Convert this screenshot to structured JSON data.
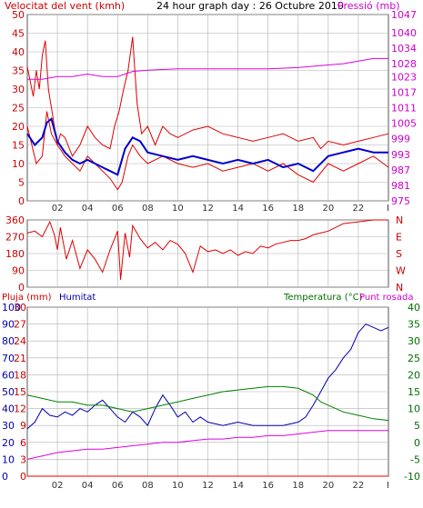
{
  "colors": {
    "wind": "#e00000",
    "gust": "#e00000",
    "pressure": "#e000e0",
    "avg_wind": "#0000cc",
    "green": "#008000",
    "blue": "#0000b0",
    "magenta": "#e000e0",
    "red": "#e00000",
    "grid": "#b0b0b0",
    "axis_left_top": "#cc0000",
    "axis_right_top": "#cc00cc",
    "axis_blue": "#0000aa",
    "axis_green": "#007000",
    "dark": "#333333"
  },
  "chart_data": [
    {
      "type": "line",
      "title": "24 hour graph day : 26 Octubre 2010",
      "ylabel": "Velocitat del vent (kmh)",
      "y2label": "Pressió (mb)",
      "ylim": [
        0,
        50
      ],
      "yticks": [
        0,
        5,
        10,
        15,
        20,
        25,
        30,
        35,
        40,
        45,
        50
      ],
      "y2lim": [
        975,
        1047
      ],
      "y2ticks": [
        975,
        981,
        987,
        993,
        999,
        1005,
        1011,
        1017,
        1023,
        1028,
        1034,
        1040,
        1047
      ],
      "xlim": [
        0,
        24
      ],
      "xticks": [
        2,
        4,
        6,
        8,
        10,
        12,
        14,
        16,
        18,
        20,
        22
      ],
      "xticklabels": [
        "02",
        "04",
        "06",
        "08",
        "10",
        "12",
        "14",
        "16",
        "18",
        "20",
        "22"
      ],
      "xlast_label": "I",
      "grid": true,
      "series": [
        {
          "key": "gust",
          "axis": "left",
          "width": 1,
          "x": [
            0,
            0.2,
            0.4,
            0.6,
            0.8,
            1.0,
            1.2,
            1.4,
            1.6,
            1.8,
            2.0,
            2.2,
            2.5,
            3.0,
            3.5,
            4.0,
            4.5,
            5.0,
            5.5,
            5.8,
            6.1,
            6.4,
            6.7,
            7.0,
            7.1,
            7.3,
            7.6,
            8.0,
            8.5,
            9.0,
            9.5,
            10.0,
            11.0,
            12.0,
            13.0,
            14.0,
            15.0,
            16.0,
            17.0,
            18.0,
            19.0,
            19.5,
            20.0,
            21.0,
            22.0,
            23.0,
            24.0
          ],
          "values": [
            36,
            32,
            28,
            35,
            30,
            39,
            43,
            30,
            25,
            20,
            15,
            18,
            17,
            12,
            15,
            20,
            17,
            15,
            14,
            20,
            24,
            30,
            35,
            44,
            38,
            26,
            18,
            20,
            15,
            20,
            18,
            17,
            19,
            20,
            18,
            17,
            16,
            17,
            18,
            16,
            17,
            14,
            16,
            15,
            16,
            17,
            18
          ]
        },
        {
          "key": "wind",
          "axis": "left",
          "width": 1,
          "x": [
            0,
            0.3,
            0.6,
            1.0,
            1.3,
            1.6,
            2.0,
            2.5,
            3.0,
            3.5,
            4.0,
            4.5,
            5.0,
            5.5,
            6.0,
            6.3,
            6.7,
            7.0,
            7.5,
            8.0,
            9.0,
            10.0,
            11.0,
            12.0,
            13.0,
            14.0,
            15.0,
            16.0,
            17.0,
            18.0,
            19.0,
            20.0,
            21.0,
            22.0,
            23.0,
            24.0
          ],
          "values": [
            20,
            15,
            10,
            12,
            24,
            18,
            15,
            12,
            10,
            8,
            12,
            10,
            8,
            6,
            3,
            5,
            12,
            15,
            12,
            10,
            12,
            10,
            9,
            10,
            8,
            9,
            10,
            8,
            10,
            7,
            5,
            10,
            8,
            10,
            12,
            9
          ]
        },
        {
          "key": "avg_wind",
          "axis": "left",
          "width": 2,
          "x": [
            0,
            0.5,
            1.0,
            1.3,
            1.6,
            2.0,
            2.5,
            3.0,
            3.5,
            4.0,
            4.5,
            5.0,
            5.5,
            6.0,
            6.5,
            7.0,
            7.5,
            8.0,
            9.0,
            10.0,
            11.0,
            12.0,
            13.0,
            14.0,
            15.0,
            16.0,
            17.0,
            18.0,
            19.0,
            20.0,
            21.0,
            22.0,
            23.0,
            24.0
          ],
          "values": [
            18,
            15,
            17,
            21,
            22,
            16,
            13,
            11,
            10,
            11,
            10,
            9,
            8,
            7,
            14,
            17,
            16,
            13,
            12,
            11,
            12,
            11,
            10,
            11,
            10,
            11,
            9,
            10,
            8,
            12,
            13,
            14,
            13,
            13
          ]
        },
        {
          "key": "pressure",
          "axis": "right",
          "width": 1,
          "x": [
            0,
            1,
            2,
            3,
            4,
            5,
            6,
            6.5,
            7,
            8,
            10,
            12,
            14,
            16,
            18,
            19,
            20,
            21,
            22,
            23,
            24
          ],
          "values": [
            1022,
            1022,
            1023,
            1023,
            1024,
            1023,
            1023,
            1024,
            1025,
            1025.5,
            1026,
            1026,
            1026,
            1026,
            1026.5,
            1027,
            1027.5,
            1028,
            1029,
            1030,
            1030
          ]
        }
      ]
    },
    {
      "type": "line",
      "title": "",
      "ylim": [
        0,
        360
      ],
      "yticks": [
        0,
        90,
        180,
        270,
        360
      ],
      "y2ticklabels": [
        "N",
        "W",
        "S",
        "E",
        "N"
      ],
      "xlim": [
        0,
        24
      ],
      "grid": true,
      "series": [
        {
          "key": "red",
          "axis": "left",
          "width": 1,
          "x": [
            0,
            0.5,
            1.0,
            1.5,
            1.8,
            2.0,
            2.2,
            2.6,
            3.0,
            3.5,
            4.0,
            4.5,
            5.0,
            5.5,
            6.0,
            6.2,
            6.5,
            6.8,
            7.0,
            7.5,
            8.0,
            8.5,
            9.0,
            9.5,
            10.0,
            10.5,
            11.0,
            11.5,
            12.0,
            12.5,
            13.0,
            13.5,
            14.0,
            14.5,
            15.0,
            15.5,
            16.0,
            16.5,
            17.0,
            17.5,
            18.0,
            18.5,
            19.0,
            19.5,
            20.0,
            20.5,
            21.0,
            22.0,
            23.0,
            24.0
          ],
          "values": [
            290,
            300,
            270,
            350,
            280,
            200,
            320,
            150,
            250,
            100,
            200,
            150,
            80,
            200,
            300,
            40,
            290,
            160,
            330,
            260,
            210,
            240,
            200,
            250,
            230,
            180,
            80,
            220,
            190,
            200,
            180,
            200,
            170,
            190,
            180,
            220,
            210,
            230,
            240,
            250,
            250,
            260,
            280,
            290,
            300,
            320,
            340,
            350,
            360,
            360
          ]
        }
      ]
    },
    {
      "type": "line",
      "title": "",
      "ylabel": "Pluja (mm)",
      "ylabel2": "Humitat",
      "y2label": "Temperatura (°C)",
      "y3label": "Punt rosada",
      "ylim": [
        0,
        30
      ],
      "yticks": [
        0,
        3,
        6,
        9,
        12,
        15,
        18,
        21,
        24,
        27,
        30
      ],
      "humitat_ticks": [
        0,
        10,
        20,
        30,
        40,
        50,
        60,
        70,
        80,
        90,
        100
      ],
      "y2lim": [
        -10,
        40
      ],
      "y2ticks": [
        -10,
        -5,
        0,
        5,
        10,
        15,
        20,
        25,
        30,
        35,
        40
      ],
      "xlim": [
        0,
        24
      ],
      "xticks": [
        2,
        4,
        6,
        8,
        10,
        12,
        14,
        16,
        18,
        20,
        22
      ],
      "xticklabels": [
        "02",
        "04",
        "06",
        "08",
        "10",
        "12",
        "14",
        "16",
        "18",
        "20",
        "22"
      ],
      "xlast_label": "I",
      "grid": true,
      "series": [
        {
          "key": "blue",
          "axis": "humitat",
          "width": 1,
          "x": [
            0,
            0.5,
            1.0,
            1.5,
            2.0,
            2.5,
            3.0,
            3.5,
            4.0,
            4.5,
            5.0,
            5.5,
            6.0,
            6.5,
            7.0,
            7.5,
            8.0,
            8.5,
            9.0,
            9.5,
            10.0,
            10.5,
            11.0,
            11.5,
            12.0,
            13.0,
            14.0,
            15.0,
            16.0,
            17.0,
            18.0,
            18.5,
            19.0,
            19.5,
            20.0,
            20.5,
            21.0,
            21.5,
            22.0,
            22.5,
            23.0,
            23.5,
            24.0
          ],
          "values": [
            28,
            32,
            40,
            36,
            35,
            38,
            36,
            40,
            38,
            42,
            45,
            40,
            35,
            32,
            38,
            35,
            30,
            40,
            48,
            42,
            35,
            38,
            32,
            35,
            32,
            30,
            32,
            30,
            30,
            30,
            32,
            35,
            42,
            50,
            58,
            63,
            70,
            75,
            85,
            90,
            88,
            86,
            88
          ]
        },
        {
          "key": "green",
          "axis": "right",
          "width": 1,
          "x": [
            0,
            1,
            2,
            3,
            4,
            5,
            6,
            7,
            8,
            9,
            10,
            11,
            12,
            13,
            14,
            15,
            16,
            17,
            18,
            18.5,
            19,
            19.5,
            20,
            20.5,
            21,
            22,
            23,
            24
          ],
          "values": [
            14,
            13,
            12,
            12,
            11,
            11,
            10,
            9,
            10,
            11,
            12,
            13,
            14,
            15,
            15.5,
            16,
            16.5,
            16.5,
            16,
            15,
            14,
            12,
            11,
            10,
            9,
            8,
            7,
            6.5
          ]
        },
        {
          "key": "magenta",
          "axis": "right",
          "width": 1,
          "x": [
            0,
            1,
            2,
            3,
            4,
            5,
            6,
            7,
            8,
            9,
            10,
            11,
            12,
            13,
            14,
            15,
            16,
            17,
            18,
            19,
            20,
            21,
            22,
            23,
            24
          ],
          "values": [
            -5,
            -4,
            -3,
            -2.5,
            -2,
            -2,
            -1.5,
            -1,
            -0.5,
            0,
            0,
            0.5,
            1,
            1,
            1.5,
            1.5,
            2,
            2,
            2.5,
            3,
            3.5,
            3.5,
            3.5,
            3.5,
            3.5
          ]
        },
        {
          "key": "red",
          "axis": "left",
          "width": 1,
          "x": [
            0,
            24
          ],
          "values": [
            0,
            0
          ]
        }
      ]
    }
  ]
}
